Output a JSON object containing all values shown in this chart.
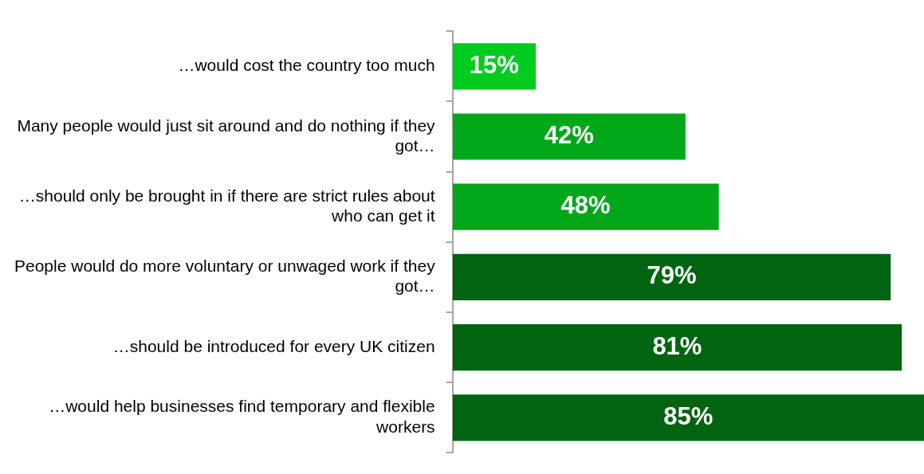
{
  "chart_data": {
    "type": "bar",
    "orientation": "horizontal",
    "categories": [
      "…would cost the country too much",
      "Many people would just sit around and do nothing if they got…",
      "…should only be brought in if there are strict rules about who can get it",
      "People would do more voluntary or unwaged work if they got…",
      "…should be introduced for every UK citizen",
      "…would help businesses find temporary and flexible workers"
    ],
    "values": [
      15,
      42,
      48,
      79,
      81,
      85
    ],
    "colors": [
      "#00cc1f",
      "#00a819",
      "#00a819",
      "#006410",
      "#006410",
      "#006410"
    ],
    "value_labels": [
      "15%",
      "42%",
      "48%",
      "79%",
      "81%",
      "85%"
    ],
    "xlim": [
      0,
      85
    ],
    "tick_labels": "y",
    "legend": false
  }
}
